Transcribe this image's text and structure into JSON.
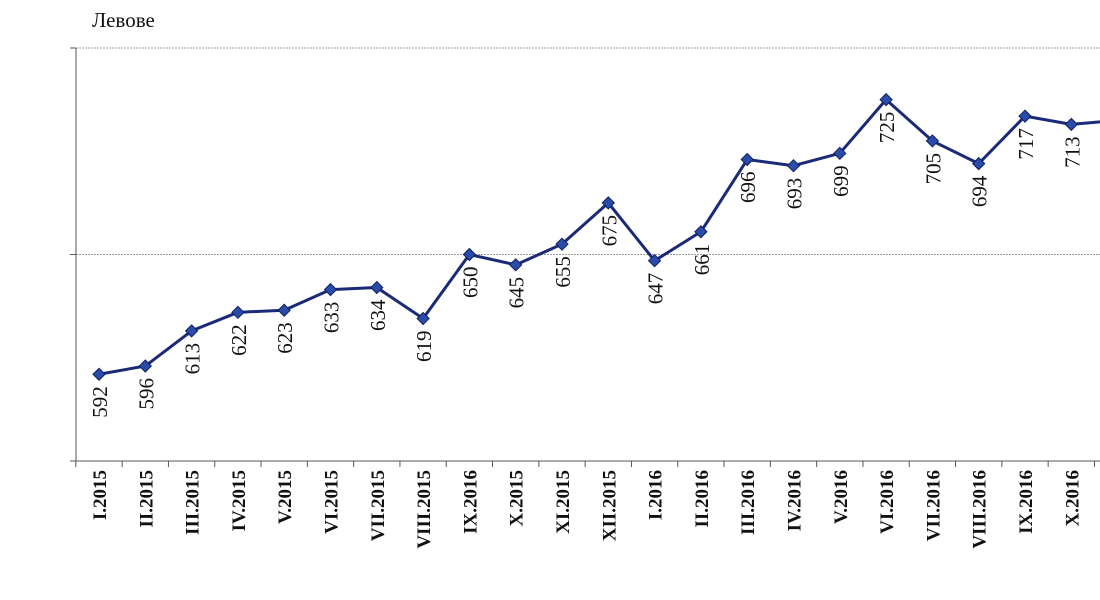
{
  "chart_data": {
    "type": "line",
    "ylabel": "Левове",
    "categories": [
      "I.2015",
      "II.2015",
      "III.2015",
      "IV.2015",
      "V.2015",
      "VI.2015",
      "VII.2015",
      "VIII.2015",
      "IX.2016",
      "X.2015",
      "XI.2015",
      "XII.2015",
      "I.2016",
      "II.2016",
      "III.2016",
      "IV.2016",
      "V.2016",
      "VI.2016",
      "VII.2016",
      "VIII.2016",
      "IX.2016",
      "X.2016",
      ""
    ],
    "series": [
      {
        "values": [
          592,
          596,
          613,
          622,
          623,
          633,
          634,
          619,
          650,
          645,
          655,
          675,
          647,
          661,
          696,
          693,
          699,
          725,
          705,
          694,
          717,
          713,
          715
        ]
      }
    ],
    "data_labels": [
      "592",
      "596",
      "613",
      "622",
      "623",
      "633",
      "634",
      "619",
      "650",
      "645",
      "655",
      "675",
      "647",
      "661",
      "696",
      "693",
      "699",
      "725",
      "705",
      "694",
      "717",
      "713",
      ""
    ],
    "ylim": [
      550,
      750
    ],
    "gridlines": [
      650,
      750
    ],
    "grid": true,
    "legend": "none",
    "colors": {
      "line": "#1b2a78",
      "marker": "#2a4ca8"
    }
  }
}
